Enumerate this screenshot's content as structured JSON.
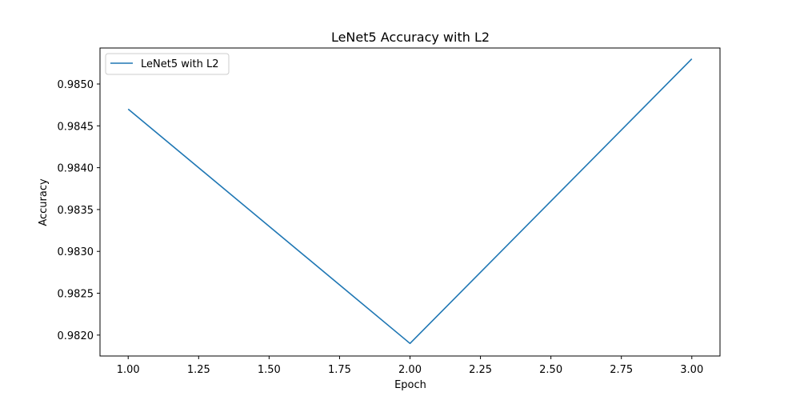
{
  "chart_data": {
    "type": "line",
    "title": "LeNet5 Accuracy with L2",
    "xlabel": "Epoch",
    "ylabel": "Accuracy",
    "xlim": [
      0.9,
      3.1
    ],
    "ylim": [
      0.98175,
      0.98543
    ],
    "xticks": [
      1.0,
      1.25,
      1.5,
      1.75,
      2.0,
      2.25,
      2.5,
      2.75,
      3.0
    ],
    "xtick_labels": [
      "1.00",
      "1.25",
      "1.50",
      "1.75",
      "2.00",
      "2.25",
      "2.50",
      "2.75",
      "3.00"
    ],
    "yticks": [
      0.982,
      0.9825,
      0.983,
      0.9835,
      0.984,
      0.9845,
      0.985
    ],
    "ytick_labels": [
      "0.9820",
      "0.9825",
      "0.9830",
      "0.9835",
      "0.9840",
      "0.9845",
      "0.9850"
    ],
    "grid": false,
    "legend_position": "top-left",
    "series": [
      {
        "name": "LeNet5 with L2",
        "color": "#1f77b4",
        "x": [
          1,
          2,
          3
        ],
        "y": [
          0.9847,
          0.9819,
          0.9853
        ]
      }
    ]
  }
}
